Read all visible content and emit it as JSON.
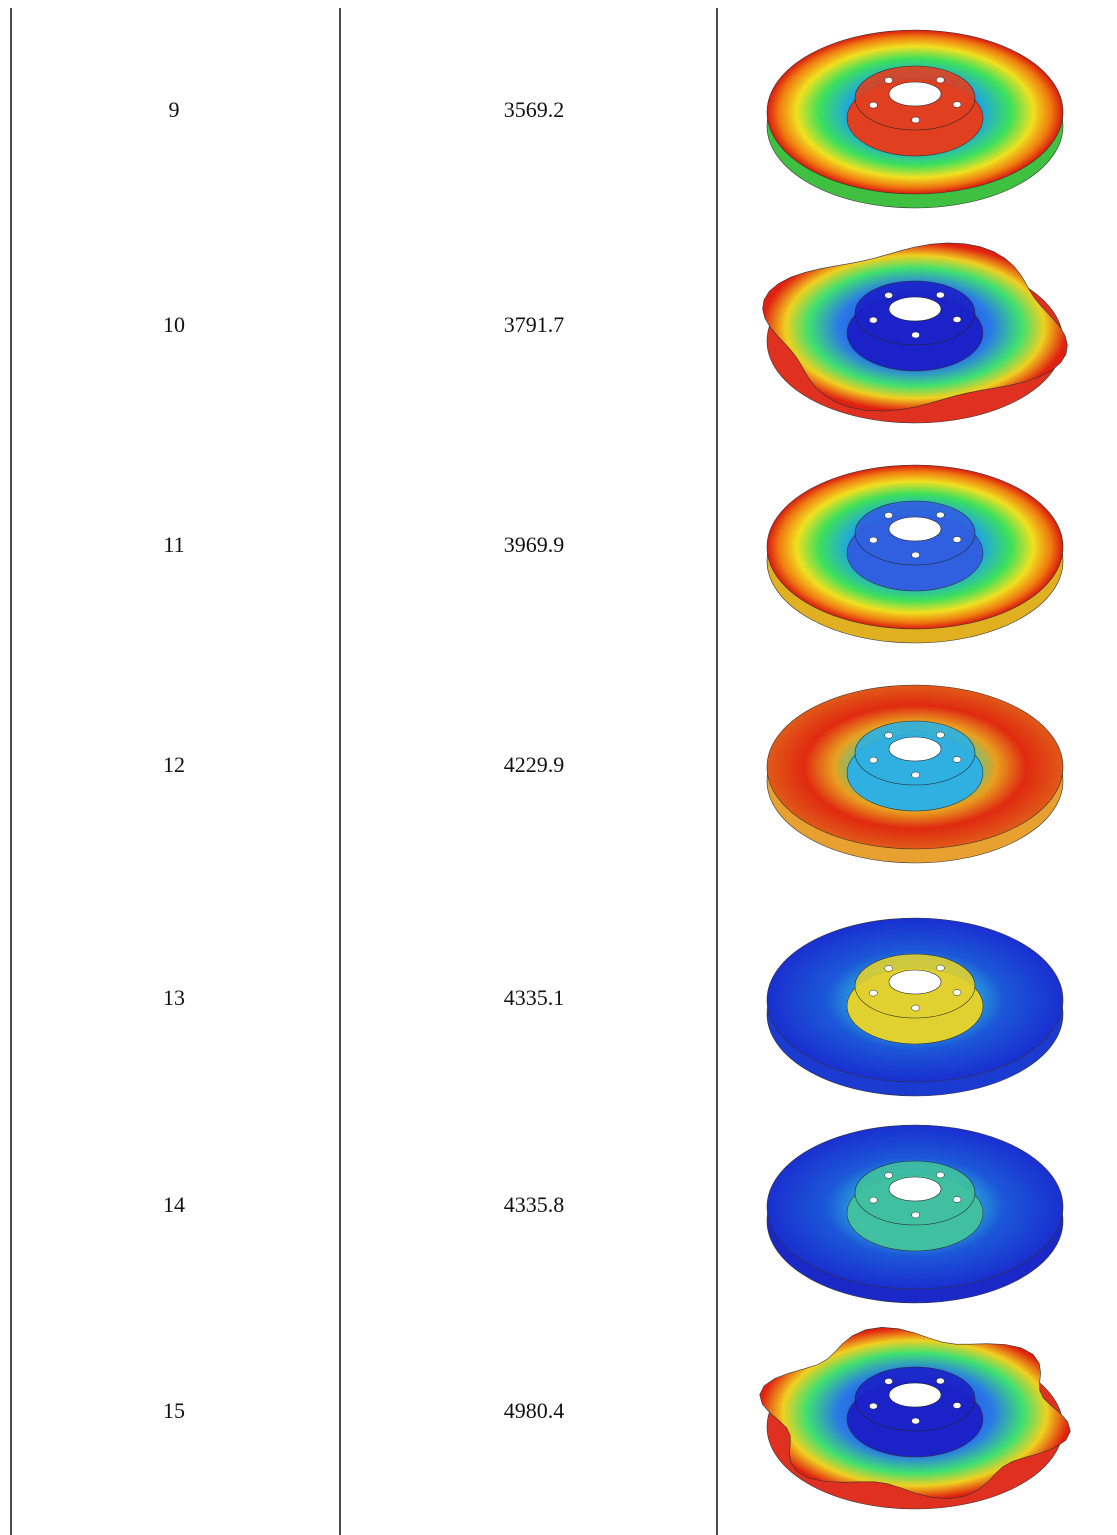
{
  "table": {
    "rows": [
      [
        "9",
        "3569.2"
      ],
      [
        "10",
        "3791.7"
      ],
      [
        "11",
        "3969.9"
      ],
      [
        "12",
        "4229.9"
      ],
      [
        "13",
        "4335.1"
      ],
      [
        "14",
        "4335.8"
      ],
      [
        "15",
        "4980.4"
      ]
    ]
  }
}
